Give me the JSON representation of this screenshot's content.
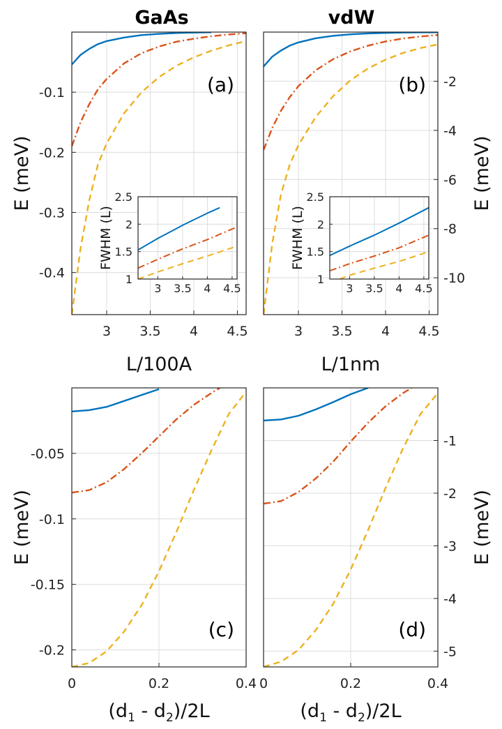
{
  "figure": {
    "col_titles": [
      "GaAs",
      "vdW"
    ]
  },
  "colors": {
    "c1": "#0072bd",
    "c2": "#d95319",
    "c3": "#edb120"
  },
  "chart_data": [
    {
      "id": "a",
      "type": "line",
      "tag": "(a)",
      "xlabel": "L/100A",
      "ylabel": "E (meV)",
      "ylabel_side": "left",
      "xlim": [
        2.6,
        4.6
      ],
      "ylim": [
        -0.47,
        0.0
      ],
      "xticks": [
        3,
        3.5,
        4,
        4.5
      ],
      "xtick_labels": [
        "3",
        "3.5",
        "4",
        "4.5"
      ],
      "yticks": [
        -0.1,
        -0.2,
        -0.3,
        -0.4
      ],
      "ytick_labels": [
        "-0.1",
        "-0.2",
        "-0.3",
        "-0.4"
      ],
      "grid": true,
      "series": [
        {
          "style": "solid",
          "color": "#0072bd",
          "x": [
            2.6,
            2.7,
            2.8,
            2.9,
            3.0,
            3.2,
            3.4,
            3.6,
            3.8,
            4.0,
            4.2
          ],
          "y": [
            -0.054,
            -0.038,
            -0.028,
            -0.02,
            -0.015,
            -0.009,
            -0.005,
            -0.003,
            -0.0015,
            -0.0008,
            -0.0004
          ]
        },
        {
          "style": "dashdot",
          "color": "#d95319",
          "x": [
            2.6,
            2.7,
            2.8,
            2.9,
            3.0,
            3.2,
            3.4,
            3.6,
            3.8,
            4.0,
            4.2,
            4.4,
            4.6
          ],
          "y": [
            -0.19,
            -0.15,
            -0.12,
            -0.095,
            -0.078,
            -0.052,
            -0.035,
            -0.024,
            -0.016,
            -0.011,
            -0.007,
            -0.004,
            -0.002
          ]
        },
        {
          "style": "dashed",
          "color": "#edb120",
          "x": [
            2.6,
            2.7,
            2.8,
            2.9,
            3.0,
            3.2,
            3.4,
            3.6,
            3.8,
            4.0,
            4.2,
            4.4,
            4.6
          ],
          "y": [
            -0.47,
            -0.36,
            -0.28,
            -0.22,
            -0.185,
            -0.135,
            -0.1,
            -0.075,
            -0.056,
            -0.042,
            -0.031,
            -0.022,
            -0.015
          ]
        }
      ],
      "inset": {
        "ylabel": "FWHM (L)",
        "xlim": [
          2.6,
          4.6
        ],
        "ylim": [
          1.0,
          2.5
        ],
        "xticks": [
          3,
          3.5,
          4,
          4.5
        ],
        "xtick_labels": [
          "3",
          "3.5",
          "4",
          "4.5"
        ],
        "yticks": [
          1,
          1.5,
          2,
          2.5
        ],
        "ytick_labels": [
          "1",
          "1.5",
          "2",
          "2.5"
        ],
        "series": [
          {
            "style": "solid",
            "color": "#0072bd",
            "x": [
              2.6,
              3.0,
              3.5,
              4.0,
              4.25
            ],
            "y": [
              1.53,
              1.74,
              1.98,
              2.2,
              2.3
            ]
          },
          {
            "style": "dashdot",
            "color": "#d95319",
            "x": [
              2.6,
              3.0,
              3.5,
              4.0,
              4.6
            ],
            "y": [
              1.2,
              1.36,
              1.55,
              1.72,
              1.95
            ]
          },
          {
            "style": "dashed",
            "color": "#edb120",
            "x": [
              2.6,
              3.0,
              3.5,
              4.0,
              4.6
            ],
            "y": [
              1.0,
              1.13,
              1.28,
              1.42,
              1.6
            ]
          }
        ]
      }
    },
    {
      "id": "b",
      "type": "line",
      "tag": "(b)",
      "xlabel": "L/1nm",
      "ylabel": "E (meV)",
      "ylabel_side": "right",
      "xlim": [
        2.6,
        4.6
      ],
      "ylim": [
        -11.5,
        0.0
      ],
      "xticks": [
        3,
        3.5,
        4,
        4.5
      ],
      "xtick_labels": [
        "3",
        "3.5",
        "4",
        "4.5"
      ],
      "yticks": [
        -2,
        -4,
        -6,
        -8,
        -10
      ],
      "ytick_labels": [
        "-2",
        "-4",
        "-6",
        "-8",
        "-10"
      ],
      "grid": true,
      "series": [
        {
          "style": "solid",
          "color": "#0072bd",
          "x": [
            2.6,
            2.7,
            2.8,
            2.9,
            3.0,
            3.2,
            3.4,
            3.6,
            3.8,
            4.0,
            4.2,
            4.4,
            4.6
          ],
          "y": [
            -1.4,
            -1.0,
            -0.75,
            -0.55,
            -0.42,
            -0.25,
            -0.15,
            -0.09,
            -0.055,
            -0.035,
            -0.02,
            -0.012,
            -0.008
          ]
        },
        {
          "style": "dashdot",
          "color": "#d95319",
          "x": [
            2.6,
            2.7,
            2.8,
            2.9,
            3.0,
            3.2,
            3.4,
            3.6,
            3.8,
            4.0,
            4.2,
            4.4,
            4.6
          ],
          "y": [
            -4.8,
            -3.9,
            -3.2,
            -2.65,
            -2.2,
            -1.55,
            -1.1,
            -0.78,
            -0.55,
            -0.38,
            -0.26,
            -0.18,
            -0.12
          ]
        },
        {
          "style": "dashed",
          "color": "#edb120",
          "x": [
            2.6,
            2.7,
            2.8,
            2.9,
            3.0,
            3.2,
            3.4,
            3.6,
            3.8,
            4.0,
            4.2,
            4.4,
            4.6
          ],
          "y": [
            -11.5,
            -8.6,
            -6.6,
            -5.4,
            -4.6,
            -3.45,
            -2.6,
            -1.95,
            -1.48,
            -1.12,
            -0.85,
            -0.65,
            -0.5
          ]
        }
      ],
      "inset": {
        "ylabel": "FWHM (L)",
        "xlim": [
          2.6,
          4.6
        ],
        "ylim": [
          1.0,
          2.5
        ],
        "xticks": [
          3,
          3.5,
          4,
          4.5
        ],
        "xtick_labels": [
          "3",
          "3.5",
          "4",
          "4.5"
        ],
        "yticks": [
          1,
          1.5,
          2,
          2.5
        ],
        "ytick_labels": [
          "1",
          "1.5",
          "2",
          "2.5"
        ],
        "series": [
          {
            "style": "solid",
            "color": "#0072bd",
            "x": [
              2.6,
              3.0,
              3.5,
              4.0,
              4.6
            ],
            "y": [
              1.43,
              1.6,
              1.8,
              2.02,
              2.3
            ]
          },
          {
            "style": "dashdot",
            "color": "#d95319",
            "x": [
              2.6,
              3.0,
              3.5,
              4.0,
              4.6
            ],
            "y": [
              1.15,
              1.28,
              1.42,
              1.57,
              1.8
            ]
          },
          {
            "style": "dashed",
            "color": "#edb120",
            "x": [
              2.8,
              3.0,
              3.5,
              4.0,
              4.6
            ],
            "y": [
              1.0,
              1.07,
              1.2,
              1.32,
              1.5
            ]
          }
        ]
      }
    },
    {
      "id": "c",
      "type": "line",
      "tag": "(c)",
      "xlabel": "(d1 - d2)/2L",
      "ylabel": "E (meV)",
      "ylabel_side": "left",
      "xlim": [
        0.0,
        0.4
      ],
      "ylim": [
        -0.213,
        0.0
      ],
      "xticks": [
        0,
        0.2,
        0.4
      ],
      "xtick_labels": [
        "0",
        "0.2",
        "0.4"
      ],
      "yticks": [
        -0.05,
        -0.1,
        -0.15,
        -0.2
      ],
      "ytick_labels": [
        "-0.05",
        "-0.1",
        "-0.15",
        "-0.2"
      ],
      "grid": true,
      "series": [
        {
          "style": "solid",
          "color": "#0072bd",
          "x": [
            0.0,
            0.04,
            0.08,
            0.12,
            0.16,
            0.2
          ],
          "y": [
            -0.018,
            -0.017,
            -0.0145,
            -0.01,
            -0.0055,
            -0.001
          ]
        },
        {
          "style": "dashdot",
          "color": "#d95319",
          "x": [
            0.0,
            0.04,
            0.08,
            0.12,
            0.16,
            0.2,
            0.24,
            0.28,
            0.32,
            0.34
          ],
          "y": [
            -0.08,
            -0.078,
            -0.072,
            -0.062,
            -0.05,
            -0.037,
            -0.024,
            -0.013,
            -0.004,
            0.0
          ]
        },
        {
          "style": "dashed",
          "color": "#edb120",
          "x": [
            0.0,
            0.04,
            0.08,
            0.12,
            0.16,
            0.2,
            0.24,
            0.28,
            0.32,
            0.36,
            0.4
          ],
          "y": [
            -0.213,
            -0.21,
            -0.201,
            -0.186,
            -0.166,
            -0.14,
            -0.11,
            -0.078,
            -0.048,
            -0.02,
            -0.003
          ]
        }
      ]
    },
    {
      "id": "d",
      "type": "line",
      "tag": "(d)",
      "xlabel": "(d1 - d2)/2L",
      "ylabel": "E (meV)",
      "ylabel_side": "right",
      "xlim": [
        0.0,
        0.4
      ],
      "ylim": [
        -5.3,
        0.0
      ],
      "xticks": [
        0,
        0.2,
        0.4
      ],
      "xtick_labels": [
        "0",
        "0.2",
        "0.4"
      ],
      "yticks": [
        -1,
        -2,
        -3,
        -4,
        -5
      ],
      "ytick_labels": [
        "-1",
        "-2",
        "-3",
        "-4",
        "-5"
      ],
      "grid": true,
      "series": [
        {
          "style": "solid",
          "color": "#0072bd",
          "x": [
            0.0,
            0.04,
            0.08,
            0.12,
            0.16,
            0.2,
            0.24
          ],
          "y": [
            -0.62,
            -0.6,
            -0.53,
            -0.41,
            -0.27,
            -0.12,
            0.0
          ]
        },
        {
          "style": "dashdot",
          "color": "#d95319",
          "x": [
            0.0,
            0.04,
            0.08,
            0.12,
            0.16,
            0.2,
            0.24,
            0.28,
            0.32,
            0.34
          ],
          "y": [
            -2.2,
            -2.15,
            -1.98,
            -1.72,
            -1.4,
            -1.02,
            -0.66,
            -0.35,
            -0.1,
            0.0
          ]
        },
        {
          "style": "dashed",
          "color": "#edb120",
          "x": [
            0.0,
            0.04,
            0.08,
            0.12,
            0.16,
            0.2,
            0.24,
            0.28,
            0.32,
            0.36,
            0.4
          ],
          "y": [
            -5.3,
            -5.2,
            -4.98,
            -4.6,
            -4.1,
            -3.45,
            -2.7,
            -1.9,
            -1.15,
            -0.5,
            -0.1
          ]
        }
      ]
    }
  ]
}
